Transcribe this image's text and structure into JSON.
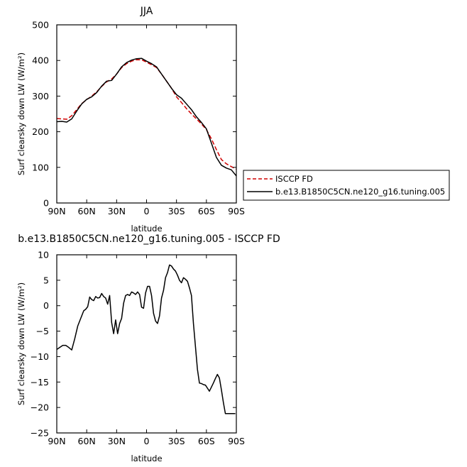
{
  "chart_data": [
    {
      "type": "line",
      "title": "JJA",
      "xlabel": "latitude",
      "ylabel": "Surf clearsky down LW (W/m²)",
      "xlim": [
        90,
        -90
      ],
      "ylim": [
        0,
        500
      ],
      "x_ticks": [
        90,
        60,
        30,
        0,
        -30,
        -60,
        -90
      ],
      "x_tick_labels": [
        "90N",
        "60N",
        "30N",
        "0",
        "30S",
        "60S",
        "90S"
      ],
      "y_ticks": [
        0,
        100,
        200,
        300,
        400,
        500
      ],
      "y_tick_labels": [
        "0",
        "100",
        "200",
        "300",
        "400",
        "500"
      ],
      "legend_position": "lower-right, outside plot",
      "series": [
        {
          "name": "ISCCP FD",
          "color": "#d00000",
          "dash": "dashed",
          "x": [
            90,
            85,
            80,
            75,
            70,
            65,
            60,
            55,
            50,
            45,
            40,
            35,
            30,
            25,
            20,
            15,
            10,
            5,
            0,
            -5,
            -10,
            -15,
            -20,
            -25,
            -30,
            -35,
            -40,
            -45,
            -50,
            -55,
            -60,
            -65,
            -70,
            -75,
            -80,
            -85,
            -90
          ],
          "values": [
            237,
            236,
            235,
            245,
            262,
            279,
            290,
            300,
            312,
            327,
            340,
            348,
            362,
            380,
            391,
            398,
            402,
            402,
            395,
            388,
            380,
            362,
            342,
            322,
            298,
            282,
            265,
            250,
            236,
            222,
            206,
            180,
            150,
            122,
            110,
            102,
            95
          ]
        },
        {
          "name": "b.e13.B1850C5CN.ne120_g16.tuning.005",
          "color": "#000000",
          "dash": "solid",
          "x": [
            90,
            85,
            80,
            75,
            70,
            65,
            60,
            55,
            50,
            45,
            40,
            35,
            30,
            25,
            20,
            15,
            10,
            5,
            0,
            -5,
            -10,
            -15,
            -20,
            -25,
            -30,
            -35,
            -40,
            -45,
            -50,
            -55,
            -60,
            -65,
            -70,
            -75,
            -80,
            -85,
            -90
          ],
          "values": [
            228,
            229,
            227,
            236,
            258,
            278,
            291,
            298,
            310,
            328,
            342,
            344,
            362,
            382,
            394,
            401,
            405,
            406,
            398,
            391,
            382,
            362,
            342,
            322,
            304,
            294,
            278,
            262,
            242,
            226,
            208,
            168,
            128,
            106,
            98,
            93,
            76
          ]
        }
      ]
    },
    {
      "type": "line",
      "title": "b.e13.B1850C5CN.ne120_g16.tuning.005 - ISCCP FD",
      "xlabel": "latitude",
      "ylabel": "Surf clearsky down LW (W/m²)",
      "xlim": [
        90,
        -90
      ],
      "ylim": [
        -25,
        10
      ],
      "x_ticks": [
        90,
        60,
        30,
        0,
        -30,
        -60,
        -90
      ],
      "x_tick_labels": [
        "90N",
        "60N",
        "30N",
        "0",
        "30S",
        "60S",
        "90S"
      ],
      "y_ticks": [
        -25,
        -20,
        -15,
        -10,
        -5,
        0,
        5,
        10
      ],
      "y_tick_labels": [
        "−25",
        "−20",
        "−15",
        "−10",
        "−5",
        "0",
        "5",
        "10"
      ],
      "series": [
        {
          "color": "#000000",
          "x": [
            90,
            87,
            84,
            81,
            78,
            75,
            72,
            69,
            66,
            63,
            61,
            59,
            57,
            55,
            53,
            51,
            49,
            47,
            45,
            43,
            41,
            39,
            37,
            35,
            33,
            31,
            29,
            27,
            25,
            23,
            21,
            19,
            17,
            15,
            13,
            11,
            9,
            7,
            5,
            3,
            1,
            -1,
            -3,
            -5,
            -7,
            -9,
            -11,
            -13,
            -15,
            -17,
            -19,
            -21,
            -23,
            -25,
            -27,
            -29,
            -31,
            -33,
            -35,
            -37,
            -39,
            -41,
            -43,
            -45,
            -47,
            -49,
            -51,
            -53,
            -55,
            -57,
            -59,
            -61,
            -63,
            -65,
            -67,
            -69,
            -71,
            -73,
            -75,
            -77,
            -79,
            -81,
            -83,
            -85,
            -87,
            -89
          ],
          "values": [
            -8.6,
            -8.2,
            -7.8,
            -7.8,
            -8.2,
            -8.7,
            -6.5,
            -4.0,
            -2.5,
            -1.0,
            -0.7,
            -0.2,
            1.7,
            1.2,
            1.0,
            1.8,
            1.5,
            1.6,
            2.4,
            1.8,
            1.5,
            0.3,
            2.0,
            -3.3,
            -5.5,
            -2.8,
            -5.5,
            -3.5,
            -2.5,
            0.5,
            2.0,
            2.2,
            2.0,
            2.7,
            2.5,
            2.2,
            2.7,
            2.2,
            -0.3,
            -0.5,
            2.5,
            3.8,
            3.8,
            2.0,
            -1.5,
            -3.0,
            -3.5,
            -2.0,
            1.5,
            3.0,
            5.5,
            6.5,
            8.0,
            7.8,
            7.2,
            6.8,
            6.0,
            5.0,
            4.5,
            5.5,
            5.2,
            4.8,
            3.5,
            2.0,
            -3.5,
            -8.0,
            -12.5,
            -15.2,
            -15.3,
            -15.5,
            -15.6,
            -16.2,
            -16.8,
            -16.0,
            -15.2,
            -14.3,
            -13.5,
            -14.2,
            -16.5,
            -19.0,
            -21.2,
            -21.2,
            -21.2,
            -21.2,
            -21.2,
            -21.2
          ]
        }
      ]
    }
  ]
}
